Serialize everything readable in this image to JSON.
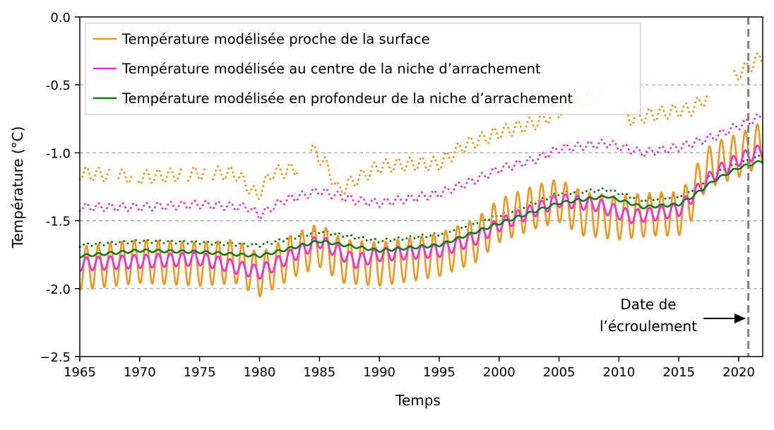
{
  "colors": {
    "surface": "#f0961e",
    "center": "#e632dc",
    "deep": "#197819",
    "grid": "#a0a0a0",
    "event_line": "#808080"
  },
  "chart_data": {
    "type": "line",
    "xlabel": "Temps",
    "ylabel": "Température (°C)",
    "xlim": [
      1965,
      2022
    ],
    "ylim": [
      -2.5,
      0.0
    ],
    "x_ticks": [
      1965,
      1970,
      1975,
      1980,
      1985,
      1990,
      1995,
      2000,
      2005,
      2010,
      2015,
      2020
    ],
    "y_ticks": [
      -2.5,
      -2.0,
      -1.5,
      -1.0,
      -0.5,
      0.0
    ],
    "y_tick_labels": [
      "−2.5",
      "-2.0",
      "-1.5",
      "-1.0",
      "-0.5",
      "0.0"
    ],
    "grid": "horizontal dashed at y ticks",
    "legend_position": "top-left",
    "event": {
      "x": 2020.8,
      "label_line1": "Date de",
      "label_line2": "l’écroulement"
    },
    "series": [
      {
        "name": "Température modélisée proche de la surface",
        "key": "surface",
        "style": "solid",
        "seasonal_amplitude": 0.16,
        "trend": {
          "x": [
            1965,
            1970,
            1975,
            1978,
            1980,
            1983,
            1985,
            1987,
            1990,
            1993,
            1995,
            1998,
            2000,
            2003,
            2005,
            2007,
            2010,
            2013,
            2015,
            2016,
            2017,
            2018,
            2020,
            2022
          ],
          "y": [
            -1.85,
            -1.8,
            -1.82,
            -1.8,
            -1.9,
            -1.75,
            -1.68,
            -1.8,
            -1.82,
            -1.78,
            -1.75,
            -1.65,
            -1.5,
            -1.4,
            -1.35,
            -1.45,
            -1.48,
            -1.45,
            -1.45,
            -1.35,
            -1.15,
            -1.08,
            -1.02,
            -0.93
          ]
        }
      },
      {
        "name": "Température modélisée au centre de la niche d’arrachement",
        "key": "center",
        "style": "solid",
        "seasonal_amplitude": 0.05,
        "trend": {
          "x": [
            1965,
            1970,
            1975,
            1980,
            1985,
            1988,
            1990,
            1995,
            1998,
            2000,
            2003,
            2005,
            2008,
            2011,
            2013,
            2015,
            2016,
            2018,
            2020,
            2022
          ],
          "y": [
            -1.82,
            -1.8,
            -1.78,
            -1.88,
            -1.65,
            -1.8,
            -1.75,
            -1.72,
            -1.63,
            -1.53,
            -1.42,
            -1.35,
            -1.38,
            -1.47,
            -1.45,
            -1.42,
            -1.33,
            -1.15,
            -1.05,
            -0.98
          ]
        }
      },
      {
        "name": "Température modélisée en profondeur de la niche d’arrachement",
        "key": "deep",
        "style": "solid",
        "seasonal_amplitude": 0.01,
        "trend": {
          "x": [
            1965,
            1970,
            1975,
            1980,
            1985,
            1990,
            1995,
            2000,
            2005,
            2009,
            2012,
            2015,
            2016,
            2018,
            2020,
            2022
          ],
          "y": [
            -1.76,
            -1.72,
            -1.73,
            -1.76,
            -1.65,
            -1.72,
            -1.68,
            -1.52,
            -1.37,
            -1.32,
            -1.4,
            -1.38,
            -1.33,
            -1.2,
            -1.11,
            -1.06
          ]
        }
      },
      {
        "key": "surface_dotted",
        "color_key": "surface",
        "style": "dotted",
        "seasonal_amplitude": 0.05,
        "gaps": [
          [
            1967.6,
            1968.2
          ],
          [
            1969.4,
            1969.9
          ],
          [
            1973.6,
            1974.0
          ],
          [
            1975.6,
            1976.1
          ],
          [
            1983.2,
            1984.3
          ],
          [
            2008.4,
            2010.4
          ],
          [
            2017.4,
            2019.6
          ]
        ],
        "trend": {
          "x": [
            1965,
            1970,
            1975,
            1978,
            1979.8,
            1981,
            1983,
            1984.4,
            1985.5,
            1986.6,
            1988,
            1990,
            1993,
            1995,
            1997,
            2000,
            2003,
            2006,
            2008,
            2011,
            2014,
            2016,
            2019,
            2022
          ],
          "y": [
            -1.15,
            -1.18,
            -1.15,
            -1.15,
            -1.32,
            -1.15,
            -1.12,
            -0.98,
            -1.08,
            -1.28,
            -1.2,
            -1.1,
            -1.08,
            -1.08,
            -0.95,
            -0.85,
            -0.78,
            -0.65,
            -0.58,
            -0.75,
            -0.7,
            -0.68,
            -0.48,
            -0.29
          ]
        }
      },
      {
        "key": "center_dotted",
        "color_key": "center",
        "style": "dotted",
        "seasonal_amplitude": 0.03,
        "trend": {
          "x": [
            1965,
            1970,
            1975,
            1979,
            1980,
            1982,
            1985,
            1988,
            1990,
            1993,
            1995,
            1998,
            2000,
            2003,
            2005,
            2009,
            2012,
            2015,
            2018,
            2020,
            2022
          ],
          "y": [
            -1.4,
            -1.4,
            -1.38,
            -1.4,
            -1.46,
            -1.35,
            -1.28,
            -1.35,
            -1.37,
            -1.33,
            -1.3,
            -1.2,
            -1.12,
            -1.05,
            -0.97,
            -0.93,
            -1.0,
            -0.96,
            -0.88,
            -0.8,
            -0.73
          ]
        }
      },
      {
        "key": "deep_dotted",
        "color_key": "deep",
        "style": "dotted",
        "seasonal_amplitude": 0.012,
        "trend": {
          "x": [
            1965,
            1970,
            1975,
            1980,
            1985,
            1990,
            1995,
            2000,
            2005,
            2009,
            2012,
            2015,
            2016,
            2018,
            2020,
            2022
          ],
          "y": [
            -1.68,
            -1.65,
            -1.66,
            -1.68,
            -1.58,
            -1.65,
            -1.6,
            -1.46,
            -1.3,
            -1.27,
            -1.35,
            -1.32,
            -1.28,
            -1.15,
            -1.08,
            -1.02
          ]
        }
      }
    ]
  }
}
